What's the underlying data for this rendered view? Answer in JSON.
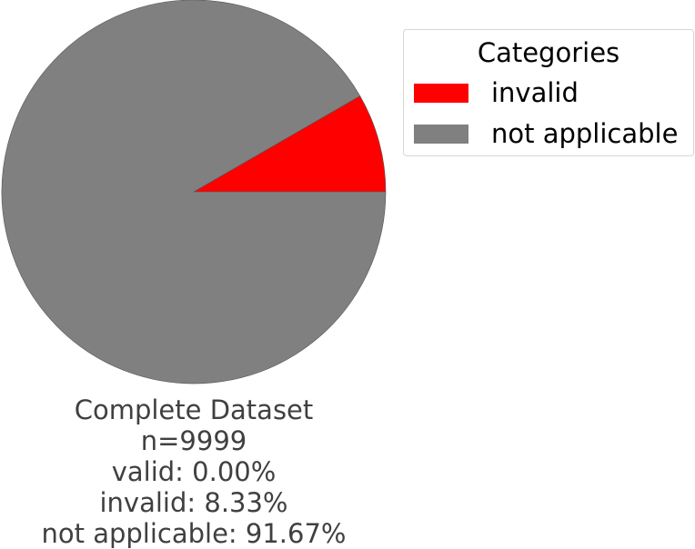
{
  "chart_data": {
    "type": "pie",
    "slices": [
      {
        "label": "invalid",
        "value": 8.33,
        "color": "#ff0000"
      },
      {
        "label": "not applicable",
        "value": 91.67,
        "color": "#808080"
      }
    ],
    "legend": {
      "title": "Categories",
      "position": "top-right"
    },
    "caption": {
      "title": "Complete Dataset",
      "count": "n=9999",
      "valid": "valid: 0.00%",
      "invalid": "invalid: 8.33%",
      "not_applicable": "not applicable: 91.67%"
    }
  }
}
